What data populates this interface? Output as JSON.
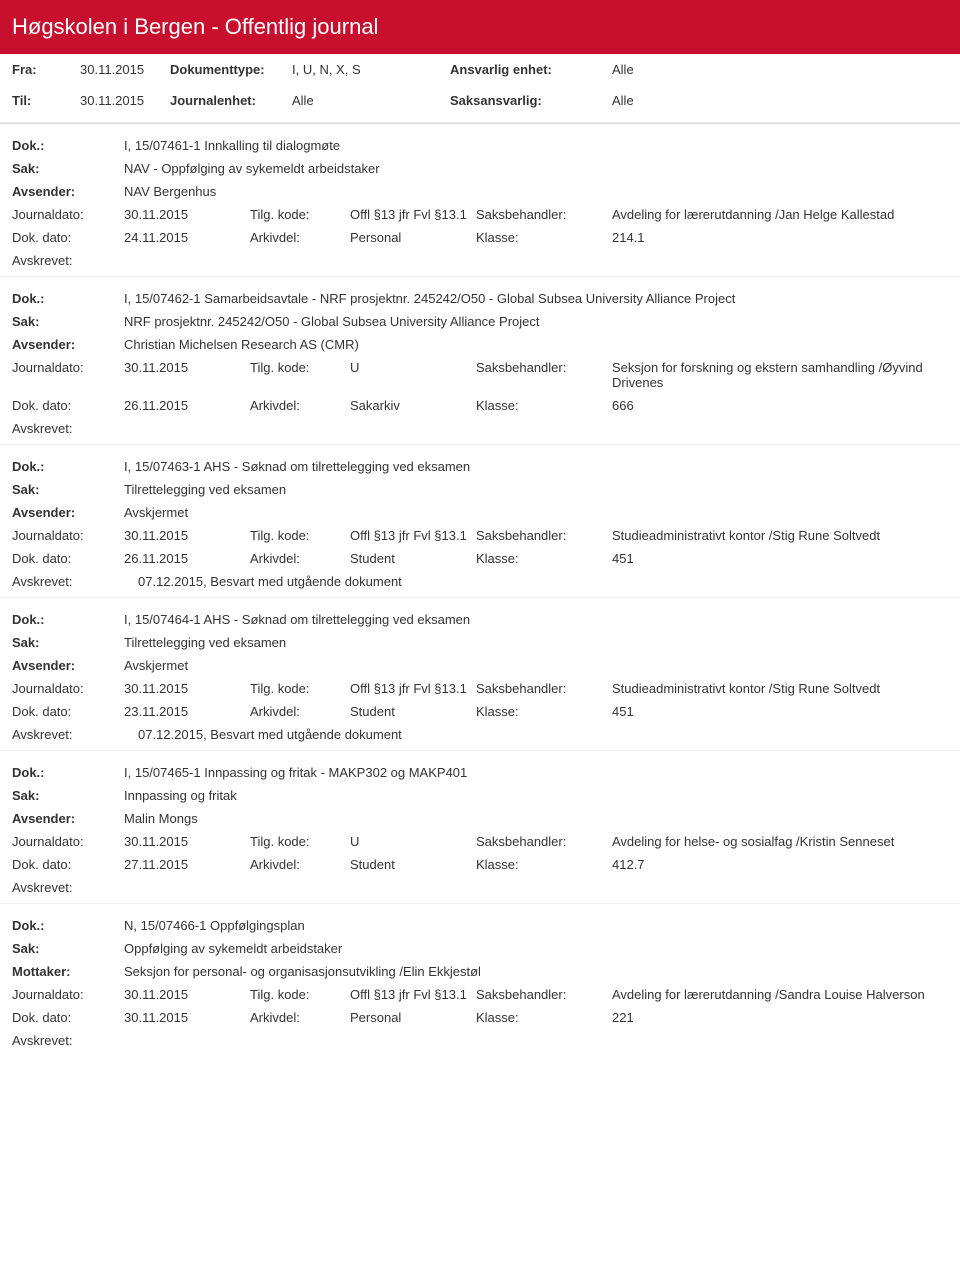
{
  "header": {
    "title": "Høgskolen i Bergen - Offentlig journal"
  },
  "filters": {
    "fra_label": "Fra:",
    "fra_value": "30.11.2015",
    "til_label": "Til:",
    "til_value": "30.11.2015",
    "doktype_label": "Dokumenttype:",
    "doktype_value": "I, U, N, X, S",
    "journalenhet_label": "Journalenhet:",
    "journalenhet_value": "Alle",
    "ansvarlig_label": "Ansvarlig enhet:",
    "ansvarlig_value": "Alle",
    "saksansvarlig_label": "Saksansvarlig:",
    "saksansvarlig_value": "Alle"
  },
  "labels": {
    "dok": "Dok.:",
    "sak": "Sak:",
    "avsender": "Avsender:",
    "mottaker": "Mottaker:",
    "journaldato": "Journaldato:",
    "dokdato": "Dok. dato:",
    "tilgkode": "Tilg. kode:",
    "arkivdel": "Arkivdel:",
    "saksbehandler": "Saksbehandler:",
    "klasse": "Klasse:",
    "avskrevet": "Avskrevet:"
  },
  "colors": {
    "header_bg": "#c8102e",
    "text": "#333333",
    "border": "#e6e6e6"
  },
  "entries": [
    {
      "dok": "I, 15/07461-1 Innkalling til dialogmøte",
      "sak": "NAV - Oppfølging av sykemeldt arbeidstaker",
      "party_label": "Avsender:",
      "party": "NAV Bergenhus",
      "journaldato": "30.11.2015",
      "tilgkode": "Offl §13 jfr Fvl §13.1",
      "saksbehandler": "Avdeling for lærerutdanning /Jan Helge Kallestad",
      "dokdato": "24.11.2015",
      "arkivdel": "Personal",
      "klasse": "214.1",
      "avskrevet": ""
    },
    {
      "dok": "I, 15/07462-1 Samarbeidsavtale - NRF prosjektnr. 245242/O50 - Global Subsea University Alliance Project",
      "sak": "NRF prosjektnr. 245242/O50 - Global Subsea University Alliance Project",
      "party_label": "Avsender:",
      "party": "Christian Michelsen Research AS (CMR)",
      "journaldato": "30.11.2015",
      "tilgkode": "U",
      "saksbehandler": "Seksjon for forskning og ekstern samhandling /Øyvind Drivenes",
      "dokdato": "26.11.2015",
      "arkivdel": "Sakarkiv",
      "klasse": "666",
      "avskrevet": ""
    },
    {
      "dok": "I, 15/07463-1 AHS - Søknad om tilrettelegging ved eksamen",
      "sak": "Tilrettelegging ved eksamen",
      "party_label": "Avsender:",
      "party": "Avskjermet",
      "journaldato": "30.11.2015",
      "tilgkode": "Offl §13 jfr Fvl §13.1",
      "saksbehandler": "Studieadministrativt kontor /Stig Rune Soltvedt",
      "dokdato": "26.11.2015",
      "arkivdel": "Student",
      "klasse": "451",
      "avskrevet": "07.12.2015, Besvart med utgående dokument"
    },
    {
      "dok": "I, 15/07464-1 AHS - Søknad om tilrettelegging ved eksamen",
      "sak": "Tilrettelegging ved eksamen",
      "party_label": "Avsender:",
      "party": "Avskjermet",
      "journaldato": "30.11.2015",
      "tilgkode": "Offl §13 jfr Fvl §13.1",
      "saksbehandler": "Studieadministrativt kontor /Stig Rune Soltvedt",
      "dokdato": "23.11.2015",
      "arkivdel": "Student",
      "klasse": "451",
      "avskrevet": "07.12.2015, Besvart med utgående dokument"
    },
    {
      "dok": "I, 15/07465-1 Innpassing og fritak - MAKP302 og MAKP401",
      "sak": "Innpassing og fritak",
      "party_label": "Avsender:",
      "party": "Malin Mongs",
      "journaldato": "30.11.2015",
      "tilgkode": "U",
      "saksbehandler": "Avdeling for helse- og sosialfag /Kristin Senneset",
      "dokdato": "27.11.2015",
      "arkivdel": "Student",
      "klasse": "412.7",
      "avskrevet": ""
    },
    {
      "dok": "N, 15/07466-1 Oppfølgingsplan",
      "sak": "Oppfølging av sykemeldt arbeidstaker",
      "party_label": "Mottaker:",
      "party": "Seksjon for personal- og organisasjonsutvikling /Elin Ekkjestøl",
      "journaldato": "30.11.2015",
      "tilgkode": "Offl §13 jfr Fvl §13.1",
      "saksbehandler": "Avdeling for lærerutdanning /Sandra Louise Halverson",
      "dokdato": "30.11.2015",
      "arkivdel": "Personal",
      "klasse": "221",
      "avskrevet": ""
    }
  ]
}
